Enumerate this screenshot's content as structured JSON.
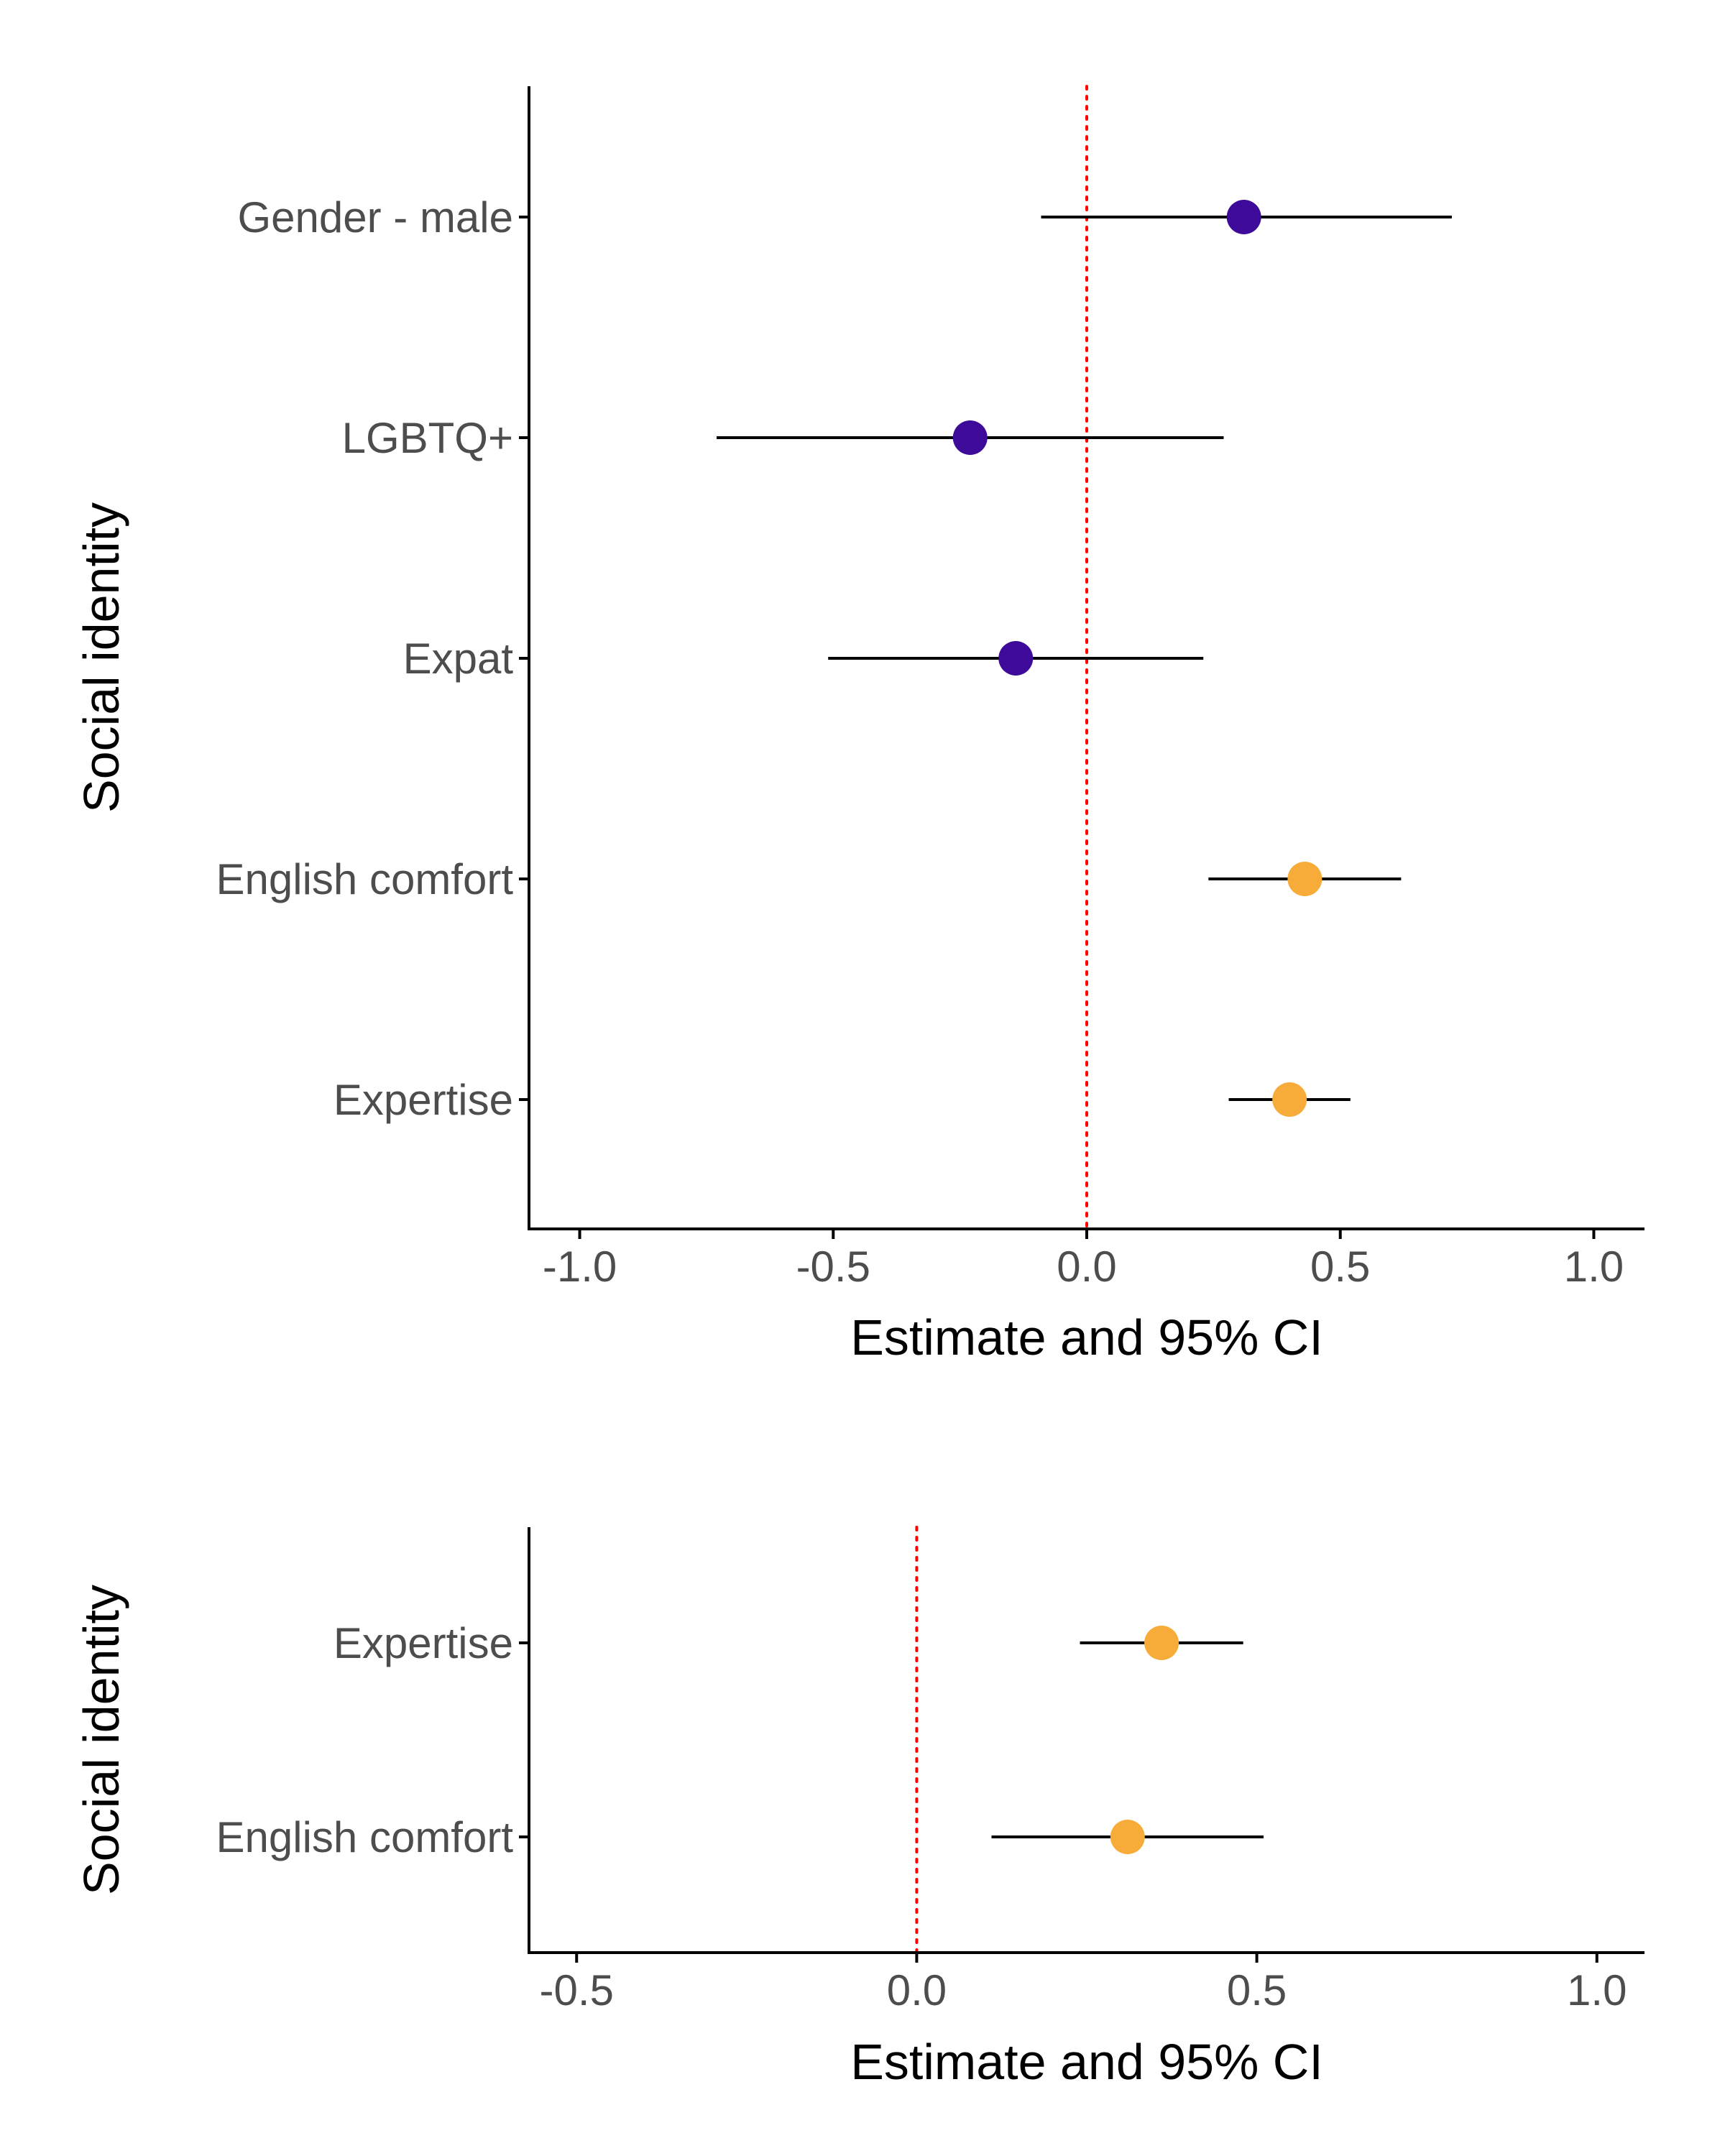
{
  "colors": {
    "negative_effect": "#3d0a99",
    "positive_effect": "#f7ac3a",
    "reference_line": "#ff0000",
    "axis": "#000000",
    "whisker": "#000000",
    "tick_text": "#4d4d4d"
  },
  "chart_data": [
    {
      "type": "scatter",
      "subtype": "forest-plot",
      "xlabel": "Estimate and 95% CI",
      "ylabel": "Social identity",
      "xlim": [
        -1.1,
        1.1
      ],
      "xticks": [
        -1.0,
        -0.5,
        0.0,
        0.5,
        1.0
      ],
      "xtick_labels": [
        "-1.0",
        "-0.5",
        "0.0",
        "0.5",
        "1.0"
      ],
      "reference_x": 0,
      "grid": false,
      "categories": [
        "Gender - male",
        "LGBTQ+",
        "Expat",
        "English comfort",
        "Expertise"
      ],
      "estimates": [
        0.31,
        -0.23,
        -0.14,
        0.43,
        0.4
      ],
      "ci_low": [
        -0.09,
        -0.73,
        -0.51,
        0.24,
        0.28
      ],
      "ci_high": [
        0.72,
        0.27,
        0.23,
        0.62,
        0.52
      ],
      "point_colors": [
        "#3d0a99",
        "#3d0a99",
        "#3d0a99",
        "#f7ac3a",
        "#f7ac3a"
      ]
    },
    {
      "type": "scatter",
      "subtype": "forest-plot",
      "xlabel": "Estimate and 95% CI",
      "ylabel": "Social identity",
      "xlim": [
        -0.57,
        1.07
      ],
      "xticks": [
        -0.5,
        0.0,
        0.5,
        1.0
      ],
      "xtick_labels": [
        "-0.5",
        "0.0",
        "0.5",
        "1.0"
      ],
      "reference_x": 0,
      "grid": false,
      "categories": [
        "Expertise",
        "English comfort"
      ],
      "estimates": [
        0.36,
        0.31
      ],
      "ci_low": [
        0.24,
        0.11
      ],
      "ci_high": [
        0.48,
        0.51
      ],
      "point_colors": [
        "#f7ac3a",
        "#f7ac3a"
      ]
    }
  ]
}
